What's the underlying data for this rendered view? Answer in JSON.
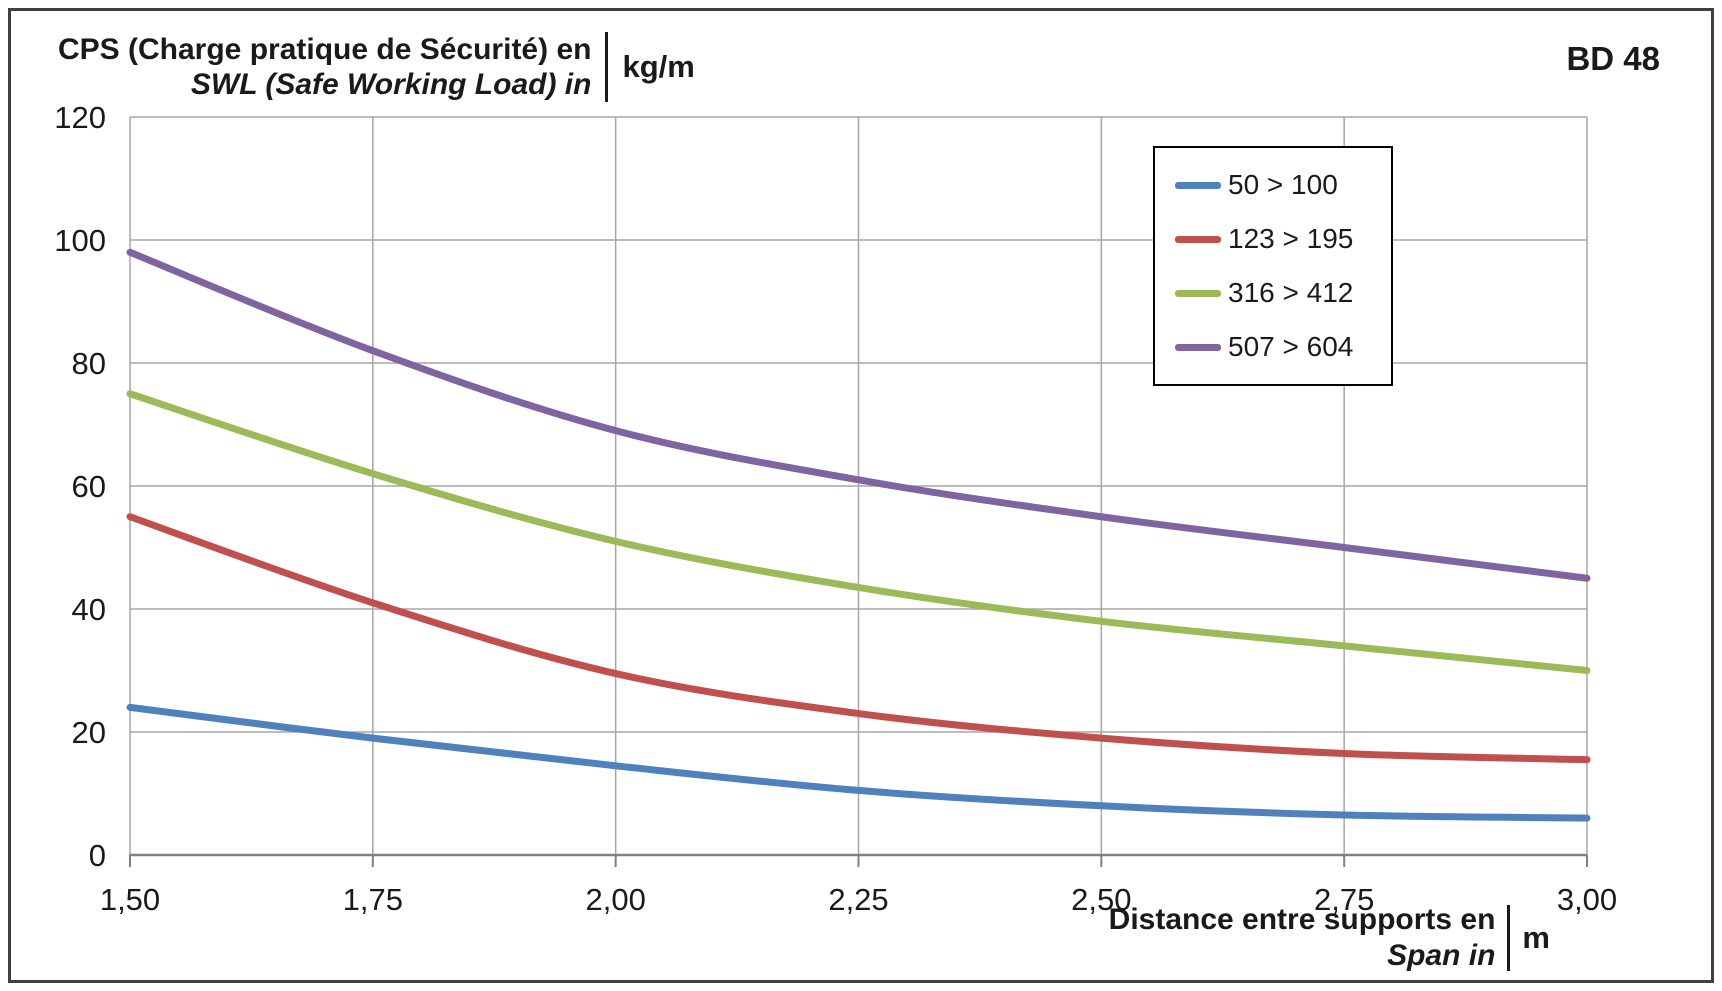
{
  "header": {
    "title_line1": "CPS (Charge pratique de Sécurité) en",
    "title_line2": "SWL (Safe Working Load) in",
    "title_unit": "kg/m",
    "badge": "BD 48"
  },
  "x_axis_label": {
    "line1": "Distance entre supports en",
    "line2": "Span in",
    "unit": "m"
  },
  "chart_data": {
    "type": "line",
    "x": [
      1.5,
      1.75,
      2.0,
      2.25,
      2.5,
      2.75,
      3.0
    ],
    "x_ticks": [
      "1,50",
      "1,75",
      "2,00",
      "2,25",
      "2,50",
      "2,75",
      "3,00"
    ],
    "y_ticks": [
      0,
      20,
      40,
      60,
      80,
      100,
      120
    ],
    "xlim": [
      1.5,
      3.0
    ],
    "ylim": [
      0,
      120
    ],
    "grid": true,
    "legend_position": "top-right",
    "grid_color": "#a6a6a6",
    "axis_color": "#808080",
    "series": [
      {
        "name": "50 > 100",
        "color": "#4f81bd",
        "values": [
          24,
          19,
          14.5,
          10.5,
          8,
          6.5,
          6
        ]
      },
      {
        "name": "123 > 195",
        "color": "#c0504d",
        "values": [
          55,
          41,
          29.5,
          23,
          19,
          16.5,
          15.5
        ]
      },
      {
        "name": "316 > 412",
        "color": "#9bbb59",
        "values": [
          75,
          62,
          51,
          43.5,
          38,
          34,
          30
        ]
      },
      {
        "name": "507 > 604",
        "color": "#8064a2",
        "values": [
          98,
          82,
          69,
          61,
          55,
          50,
          45
        ]
      }
    ]
  }
}
